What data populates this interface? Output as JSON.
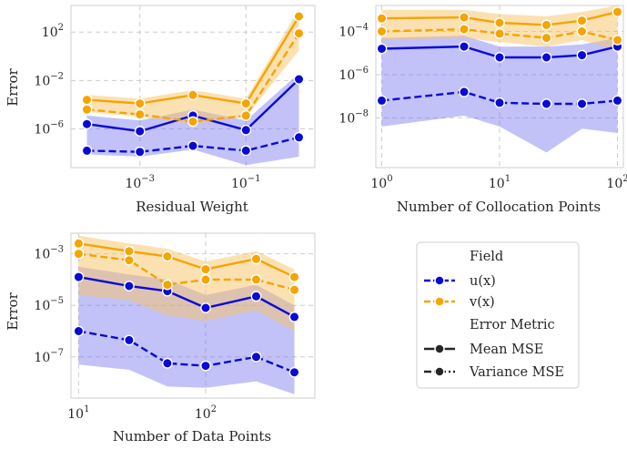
{
  "colors": {
    "u": "#0a0ad6",
    "v": "#f5a400",
    "u_band": "#6e6ef0",
    "v_band": "#f7c466",
    "grid": "#cccccc",
    "frame": "#cfcfcf"
  },
  "legend": {
    "field_title": "Field",
    "u_label": "u(x)",
    "v_label": "v(x)",
    "metric_title": "Error Metric",
    "mean_label": "Mean MSE",
    "var_label": "Variance MSE"
  },
  "chart_data": [
    {
      "type": "line",
      "name": "residual",
      "xlabel": "Residual Weight",
      "ylabel": "Error",
      "xscale": "log",
      "yscale": "log",
      "xlim_log10": [
        -4.3,
        0.3
      ],
      "ylim_log10": [
        -9.2,
        4.2
      ],
      "xticks": [
        {
          "label": "10",
          "exp": "−3",
          "v": -3
        },
        {
          "label": "10",
          "exp": "−1",
          "v": -1
        }
      ],
      "yticks": [
        {
          "label": "10",
          "exp": "−6",
          "v": -6
        },
        {
          "label": "10",
          "exp": "−2",
          "v": -2
        },
        {
          "label": "10",
          "exp": "2",
          "v": 2
        }
      ],
      "x": [
        0.0001,
        0.001,
        0.01,
        0.1,
        1
      ],
      "series": [
        {
          "name": "u(x)",
          "metric": "Mean MSE",
          "color": "u",
          "dash": "solid",
          "y_log10": [
            -5.6,
            -6.2,
            -4.9,
            -6.1,
            -1.9
          ]
        },
        {
          "name": "u(x)",
          "metric": "Variance MSE",
          "color": "u",
          "dash": "dash",
          "y_log10": [
            -7.8,
            -7.9,
            -7.4,
            -7.8,
            -6.7
          ]
        },
        {
          "name": "v(x)",
          "metric": "Mean MSE",
          "color": "v",
          "dash": "solid",
          "y_log10": [
            -3.6,
            -3.9,
            -3.2,
            -3.9,
            3.3
          ]
        },
        {
          "name": "v(x)",
          "metric": "Variance MSE",
          "color": "v",
          "dash": "dash",
          "y_log10": [
            -4.4,
            -4.8,
            -5.4,
            -4.9,
            1.9
          ]
        }
      ],
      "bands": [
        {
          "color": "u_band",
          "upper_log10": [
            -4.9,
            -5.3,
            -4.4,
            -5.3,
            -1.4
          ],
          "lower_log10": [
            -8.1,
            -8.3,
            -7.7,
            -9.0,
            -8.3
          ]
        },
        {
          "color": "v_band",
          "upper_log10": [
            -3.2,
            -3.5,
            -2.8,
            -3.5,
            3.9
          ],
          "lower_log10": [
            -4.6,
            -5.0,
            -5.6,
            -5.0,
            0.5
          ]
        }
      ]
    },
    {
      "type": "line",
      "name": "collocation",
      "xlabel": "Number of Collocation Points",
      "ylabel": "",
      "xscale": "log",
      "yscale": "log",
      "xlim_log10": [
        -0.05,
        2.05
      ],
      "ylim_log10": [
        -10.3,
        -2.8
      ],
      "xticks": [
        {
          "label": "10",
          "exp": "0",
          "v": 0
        },
        {
          "label": "10",
          "exp": "1",
          "v": 1
        },
        {
          "label": "10",
          "exp": "2",
          "v": 2
        }
      ],
      "yticks": [
        {
          "label": "10",
          "exp": "−8",
          "v": -8
        },
        {
          "label": "10",
          "exp": "−6",
          "v": -6
        },
        {
          "label": "10",
          "exp": "−4",
          "v": -4
        }
      ],
      "x": [
        1,
        5,
        10,
        25,
        50,
        100
      ],
      "series": [
        {
          "name": "u(x)",
          "metric": "Mean MSE",
          "color": "u",
          "dash": "solid",
          "y_log10": [
            -4.8,
            -4.7,
            -5.2,
            -5.2,
            -5.1,
            -4.7
          ]
        },
        {
          "name": "u(x)",
          "metric": "Variance MSE",
          "color": "u",
          "dash": "dash",
          "y_log10": [
            -7.2,
            -6.8,
            -7.3,
            -7.35,
            -7.35,
            -7.2
          ]
        },
        {
          "name": "v(x)",
          "metric": "Mean MSE",
          "color": "v",
          "dash": "solid",
          "y_log10": [
            -3.4,
            -3.35,
            -3.6,
            -3.7,
            -3.5,
            -3.1
          ]
        },
        {
          "name": "v(x)",
          "metric": "Variance MSE",
          "color": "v",
          "dash": "dash",
          "y_log10": [
            -4.0,
            -3.9,
            -4.1,
            -4.3,
            -4.0,
            -4.4
          ]
        }
      ],
      "bands": [
        {
          "color": "u_band",
          "upper_log10": [
            -4.3,
            -4.2,
            -4.7,
            -4.7,
            -4.6,
            -4.3
          ],
          "lower_log10": [
            -8.4,
            -7.9,
            -8.4,
            -9.6,
            -8.5,
            -8.7
          ]
        },
        {
          "color": "v_band",
          "upper_log10": [
            -3.0,
            -3.0,
            -3.2,
            -3.3,
            -3.1,
            -2.8
          ],
          "lower_log10": [
            -4.4,
            -4.3,
            -4.5,
            -4.7,
            -4.4,
            -4.9
          ]
        }
      ]
    },
    {
      "type": "line",
      "name": "data",
      "xlabel": "Number of Data Points",
      "ylabel": "Error",
      "xscale": "log",
      "yscale": "log",
      "xlim_log10": [
        0.94,
        2.86
      ],
      "ylim_log10": [
        -8.6,
        -2.2
      ],
      "xticks": [
        {
          "label": "10",
          "exp": "1",
          "v": 1
        },
        {
          "label": "10",
          "exp": "2",
          "v": 2
        }
      ],
      "yticks": [
        {
          "label": "10",
          "exp": "−7",
          "v": -7
        },
        {
          "label": "10",
          "exp": "−5",
          "v": -5
        },
        {
          "label": "10",
          "exp": "−3",
          "v": -3
        }
      ],
      "x": [
        10,
        25,
        50,
        100,
        250,
        500
      ],
      "series": [
        {
          "name": "u(x)",
          "metric": "Mean MSE",
          "color": "u",
          "dash": "solid",
          "y_log10": [
            -3.9,
            -4.25,
            -4.45,
            -5.1,
            -4.65,
            -5.45
          ]
        },
        {
          "name": "u(x)",
          "metric": "Variance MSE",
          "color": "u",
          "dash": "dash",
          "y_log10": [
            -6.0,
            -6.35,
            -7.25,
            -7.35,
            -7.0,
            -7.6
          ]
        },
        {
          "name": "v(x)",
          "metric": "Mean MSE",
          "color": "v",
          "dash": "solid",
          "y_log10": [
            -2.6,
            -2.9,
            -3.1,
            -3.6,
            -3.2,
            -3.9
          ]
        },
        {
          "name": "v(x)",
          "metric": "Variance MSE",
          "color": "v",
          "dash": "dash",
          "y_log10": [
            -3.0,
            -3.25,
            -4.2,
            -4.0,
            -4.0,
            -4.4
          ]
        }
      ],
      "bands": [
        {
          "color": "u_band",
          "upper_log10": [
            -3.5,
            -3.8,
            -4.0,
            -4.6,
            -4.2,
            -5.0
          ],
          "lower_log10": [
            -7.3,
            -7.5,
            -8.15,
            -8.2,
            -7.95,
            -8.45
          ]
        },
        {
          "color": "v_band",
          "upper_log10": [
            -2.3,
            -2.6,
            -2.8,
            -3.3,
            -2.9,
            -3.6
          ],
          "lower_log10": [
            -4.6,
            -4.8,
            -5.4,
            -5.6,
            -5.2,
            -6.0
          ]
        }
      ]
    }
  ]
}
